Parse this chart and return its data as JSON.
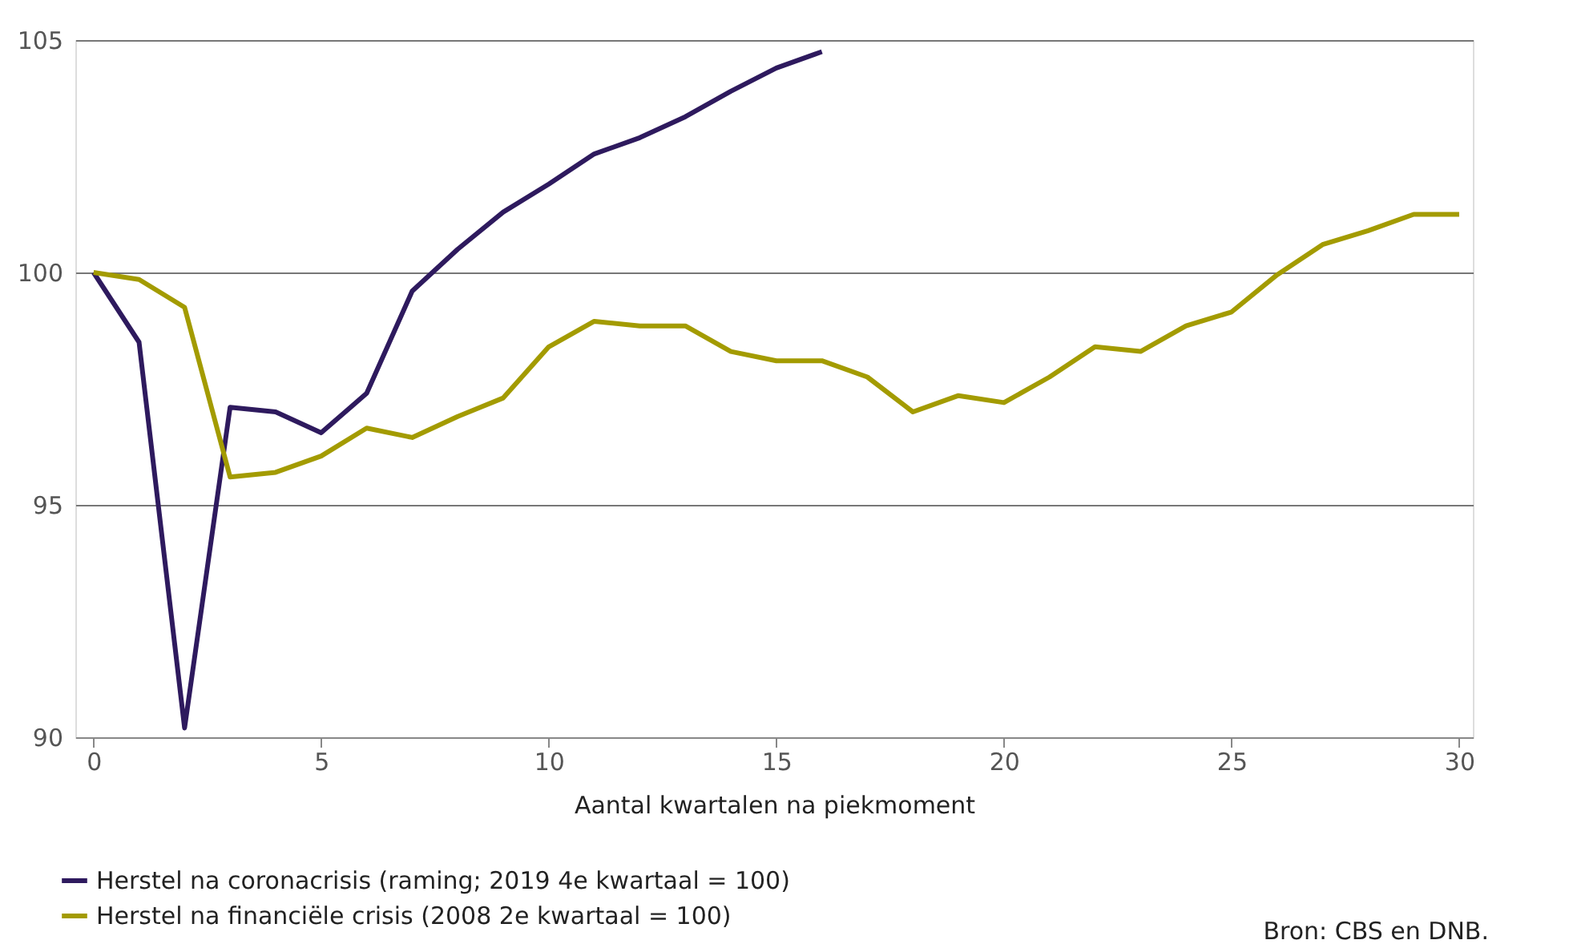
{
  "chart_data": {
    "type": "line",
    "xlabel": "Aantal kwartalen na piekmoment",
    "xlim": [
      -0.4,
      30.3
    ],
    "xticks": [
      0,
      5,
      10,
      15,
      20,
      25,
      30
    ],
    "ylim": [
      90,
      105
    ],
    "yticks": [
      90,
      95,
      100,
      105
    ],
    "grid": "y",
    "legend": "bottom left",
    "marker": "none",
    "line_style": "solid",
    "annotations": [
      "Bron: CBS en DNB."
    ],
    "series": [
      {
        "name": "Herstel na coronacrisis (raming; 2019 4e kwartaal = 100)",
        "color": "#2e1a5e",
        "x": [
          0,
          1,
          2,
          3,
          4,
          5,
          6,
          7,
          8,
          9,
          10,
          11,
          12,
          13,
          14,
          15,
          16
        ],
        "values": [
          100,
          98.5,
          90.2,
          97.1,
          97.0,
          96.55,
          97.4,
          99.6,
          100.5,
          101.3,
          101.9,
          102.55,
          102.9,
          103.35,
          103.9,
          104.4,
          104.75
        ]
      },
      {
        "name": "Herstel na financiële crisis (2008 2e kwartaal = 100)",
        "color": "#a39b00",
        "x": [
          0,
          1,
          2,
          3,
          4,
          5,
          6,
          7,
          8,
          9,
          10,
          11,
          12,
          13,
          14,
          15,
          16,
          17,
          18,
          19,
          20,
          21,
          22,
          23,
          24,
          25,
          26,
          27,
          28,
          29,
          30
        ],
        "values": [
          100,
          99.85,
          99.25,
          95.6,
          95.7,
          96.05,
          96.65,
          96.45,
          96.9,
          97.3,
          98.4,
          98.95,
          98.85,
          98.85,
          98.3,
          98.1,
          98.1,
          97.75,
          97.0,
          97.35,
          97.2,
          97.75,
          98.4,
          98.3,
          98.85,
          99.15,
          99.95,
          100.6,
          100.9,
          101.25,
          101.25
        ]
      }
    ]
  }
}
